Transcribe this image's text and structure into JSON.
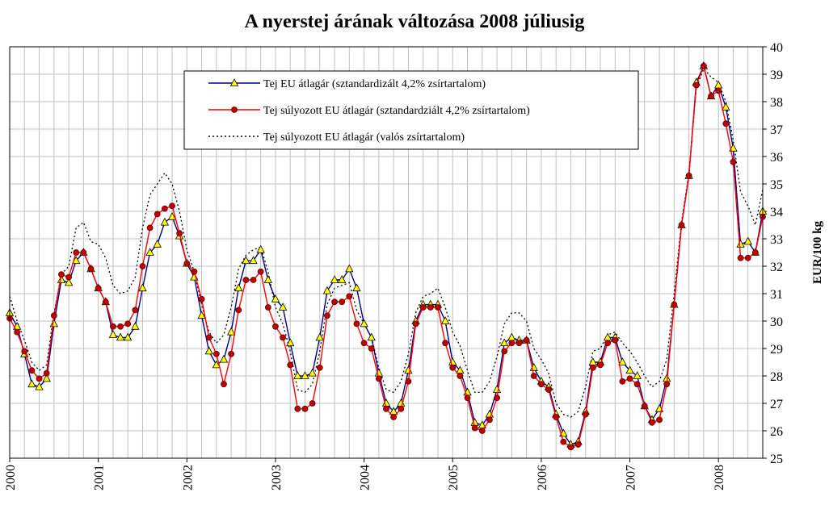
{
  "chart_data": {
    "type": "line",
    "title": "A nyerstej árának változása 2008 júliusig",
    "y_axis_label": "EUR/100 kg",
    "categories": [
      "2000",
      null,
      null,
      null,
      null,
      null,
      null,
      null,
      null,
      null,
      null,
      null,
      "2001",
      null,
      null,
      null,
      null,
      null,
      null,
      null,
      null,
      null,
      null,
      null,
      "2002",
      null,
      null,
      null,
      null,
      null,
      null,
      null,
      null,
      null,
      null,
      null,
      "2003",
      null,
      null,
      null,
      null,
      null,
      null,
      null,
      null,
      null,
      null,
      null,
      "2004",
      null,
      null,
      null,
      null,
      null,
      null,
      null,
      null,
      null,
      null,
      null,
      "2005",
      null,
      null,
      null,
      null,
      null,
      null,
      null,
      null,
      null,
      null,
      null,
      "2006",
      null,
      null,
      null,
      null,
      null,
      null,
      null,
      null,
      null,
      null,
      null,
      "2007",
      null,
      null,
      null,
      null,
      null,
      null,
      null,
      null,
      null,
      null,
      null,
      "2008",
      null,
      null,
      null,
      null,
      null,
      null
    ],
    "ylim": [
      25,
      40
    ],
    "yticks": [
      25,
      26,
      27,
      28,
      29,
      30,
      31,
      32,
      33,
      34,
      35,
      36,
      37,
      38,
      39,
      40
    ],
    "grid": true,
    "series": [
      {
        "name": "Tej EU átlagár (sztandardizált 4,2% zsírtartalom)",
        "color": "#000080",
        "marker": "triangle",
        "values": [
          30.3,
          29.8,
          28.8,
          27.7,
          27.6,
          27.9,
          29.9,
          31.5,
          31.4,
          32.2,
          32.5,
          31.9,
          31.2,
          30.7,
          29.5,
          29.4,
          29.4,
          29.8,
          31.2,
          32.5,
          32.8,
          33.6,
          33.8,
          33.1,
          32.1,
          31.6,
          30.2,
          28.9,
          28.4,
          28.6,
          29.6,
          31.2,
          32.2,
          32.2,
          32.6,
          31.5,
          30.8,
          30.5,
          29.2,
          28.0,
          28.0,
          28.1,
          29.4,
          31.1,
          31.5,
          31.5,
          31.9,
          31.2,
          29.9,
          29.4,
          28.1,
          27.0,
          26.7,
          27.0,
          28.2,
          30.0,
          30.6,
          30.6,
          30.6,
          30.0,
          28.5,
          28.2,
          27.4,
          26.3,
          26.2,
          26.6,
          27.5,
          29.2,
          29.4,
          29.3,
          29.3,
          28.3,
          27.8,
          27.6,
          26.6,
          25.9,
          25.5,
          25.6,
          26.7,
          28.5,
          28.5,
          29.4,
          29.4,
          28.5,
          28.2,
          28.0,
          26.9,
          26.4,
          26.8,
          27.9,
          30.6,
          33.5,
          35.3,
          38.7,
          39.3,
          38.2,
          38.6,
          37.8,
          36.3,
          32.8,
          32.9,
          32.5,
          34.0
        ]
      },
      {
        "name": "Tej súlyozott EU átlagár (sztandardziált 4,2% zsírtartalom)",
        "color": "#ff0000",
        "marker": "circle",
        "values": [
          30.1,
          29.6,
          28.9,
          28.2,
          27.9,
          28.1,
          30.2,
          31.7,
          31.6,
          32.5,
          32.5,
          31.9,
          31.2,
          30.7,
          29.8,
          29.8,
          29.9,
          30.4,
          32.0,
          33.4,
          33.9,
          34.1,
          34.2,
          33.2,
          32.1,
          31.8,
          30.8,
          29.4,
          28.8,
          27.7,
          28.8,
          30.4,
          31.5,
          31.5,
          31.8,
          30.5,
          29.8,
          29.4,
          28.4,
          26.8,
          26.8,
          27.0,
          28.3,
          30.2,
          30.7,
          30.7,
          30.9,
          29.9,
          29.2,
          29.0,
          27.9,
          26.8,
          26.5,
          26.8,
          27.8,
          29.9,
          30.5,
          30.5,
          30.5,
          29.2,
          28.3,
          28.0,
          27.2,
          26.1,
          26.0,
          26.4,
          27.2,
          28.9,
          29.2,
          29.2,
          29.3,
          28.0,
          27.7,
          27.5,
          26.5,
          25.6,
          25.4,
          25.5,
          26.6,
          28.3,
          28.4,
          29.2,
          29.3,
          27.8,
          27.9,
          27.7,
          26.9,
          26.3,
          26.4,
          27.7,
          30.6,
          33.5,
          35.3,
          38.6,
          39.3,
          38.2,
          38.4,
          37.2,
          35.8,
          32.3,
          32.3,
          32.5,
          33.8
        ]
      },
      {
        "name": "Tej súlyozott EU átlagár (valós zsírtartalom)",
        "color": "#000000",
        "marker": "none",
        "values": [
          30.9,
          30.0,
          29.3,
          28.5,
          28.2,
          28.4,
          30.3,
          31.7,
          32.0,
          33.4,
          33.6,
          32.9,
          32.8,
          32.3,
          31.3,
          31.0,
          31.1,
          31.6,
          33.4,
          34.6,
          35.0,
          35.4,
          35.0,
          34.0,
          32.6,
          31.8,
          30.6,
          29.6,
          29.2,
          29.5,
          30.5,
          31.9,
          32.4,
          32.6,
          32.7,
          31.8,
          30.5,
          29.9,
          28.9,
          27.5,
          27.4,
          27.7,
          28.9,
          30.6,
          31.2,
          31.3,
          31.4,
          30.4,
          29.9,
          29.4,
          28.3,
          27.5,
          27.4,
          27.8,
          28.8,
          30.3,
          30.9,
          31.0,
          31.2,
          30.5,
          29.6,
          29.1,
          28.2,
          27.4,
          27.4,
          27.8,
          28.7,
          29.9,
          30.3,
          30.3,
          30.0,
          29.0,
          28.6,
          28.1,
          27.0,
          26.6,
          26.5,
          26.7,
          27.6,
          28.9,
          29.0,
          29.5,
          29.6,
          29.2,
          28.9,
          28.5,
          28.0,
          27.6,
          27.8,
          28.6,
          31.0,
          33.6,
          35.4,
          38.5,
          39.2,
          38.9,
          38.7,
          38.0,
          36.6,
          34.7,
          34.2,
          33.5,
          34.8
        ]
      }
    ]
  }
}
